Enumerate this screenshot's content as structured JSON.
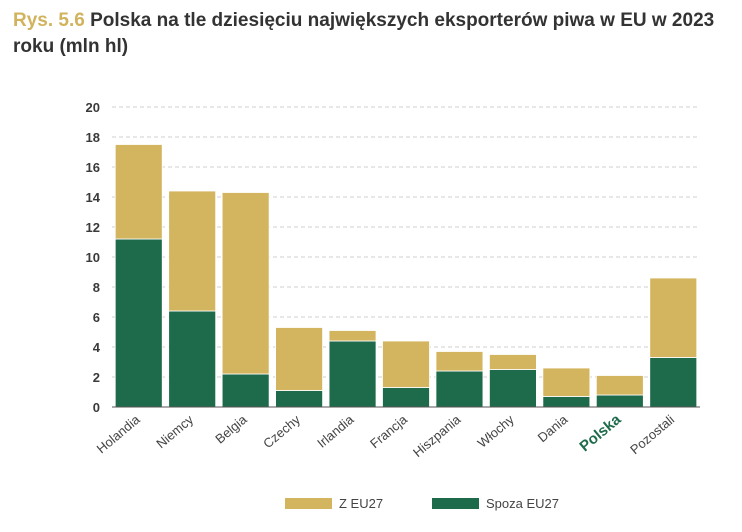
{
  "header": {
    "prefix": "Rys. 5.6",
    "title": "Polska na tle dziesięciu największych eksporterów piwa w EU w 2023 roku (mln hl)"
  },
  "chart_data": {
    "type": "bar",
    "stacked": true,
    "categories": [
      "Holandia",
      "Niemcy",
      "Belgia",
      "Czechy",
      "Irlandia",
      "Francja",
      "Hiszpania",
      "Włochy",
      "Dania",
      "Polska",
      "Pozostali"
    ],
    "highlight_category": "Polska",
    "series": [
      {
        "name": "Spoza EU27",
        "color": "#1e6b4b",
        "values": [
          11.2,
          6.4,
          2.2,
          1.1,
          4.4,
          1.3,
          2.4,
          2.5,
          0.7,
          0.8,
          3.3
        ]
      },
      {
        "name": "Z EU27",
        "color": "#d4b55f",
        "values": [
          6.3,
          8.0,
          12.1,
          4.2,
          0.7,
          3.1,
          1.3,
          1.0,
          1.9,
          1.3,
          5.3
        ]
      }
    ],
    "ylim": [
      0,
      20
    ],
    "yticks": [
      0,
      2,
      4,
      6,
      8,
      10,
      12,
      14,
      16,
      18,
      20
    ],
    "grid": true,
    "legend_position": "bottom",
    "legend_order": [
      "Z EU27",
      "Spoza EU27"
    ]
  }
}
